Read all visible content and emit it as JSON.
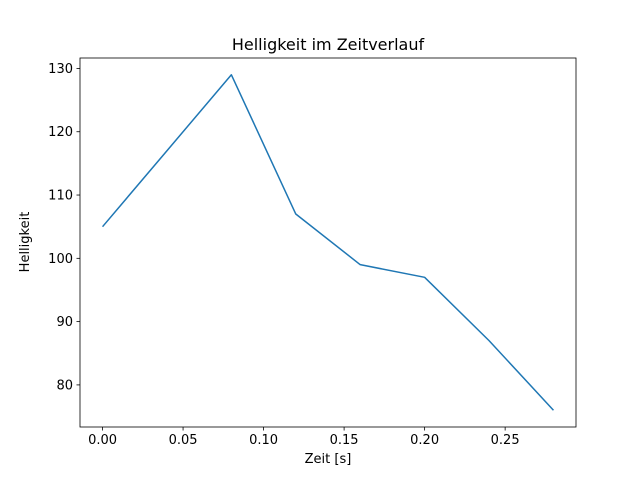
{
  "figure": {
    "background": "#ffffff",
    "frame_color": "#000000"
  },
  "chart_data": {
    "type": "line",
    "title": "Helligkeit im Zeitverlauf",
    "xlabel": "Zeit [s]",
    "ylabel": "Helligkeit",
    "x": [
      0.0,
      0.04,
      0.08,
      0.12,
      0.16,
      0.2,
      0.24,
      0.28
    ],
    "y": [
      105,
      117,
      129,
      107,
      99,
      97,
      87,
      76
    ],
    "xlim": [
      -0.014,
      0.294
    ],
    "ylim": [
      73.35,
      131.65
    ],
    "xticks": [
      {
        "v": 0.0,
        "label": "0.00"
      },
      {
        "v": 0.05,
        "label": "0.05"
      },
      {
        "v": 0.1,
        "label": "0.10"
      },
      {
        "v": 0.15,
        "label": "0.15"
      },
      {
        "v": 0.2,
        "label": "0.20"
      },
      {
        "v": 0.25,
        "label": "0.25"
      }
    ],
    "yticks": [
      {
        "v": 80,
        "label": "80"
      },
      {
        "v": 90,
        "label": "90"
      },
      {
        "v": 100,
        "label": "100"
      },
      {
        "v": 110,
        "label": "110"
      },
      {
        "v": 120,
        "label": "120"
      },
      {
        "v": 130,
        "label": "130"
      }
    ],
    "line_color": "#1f77b4",
    "grid": false,
    "legend_position": "none"
  }
}
